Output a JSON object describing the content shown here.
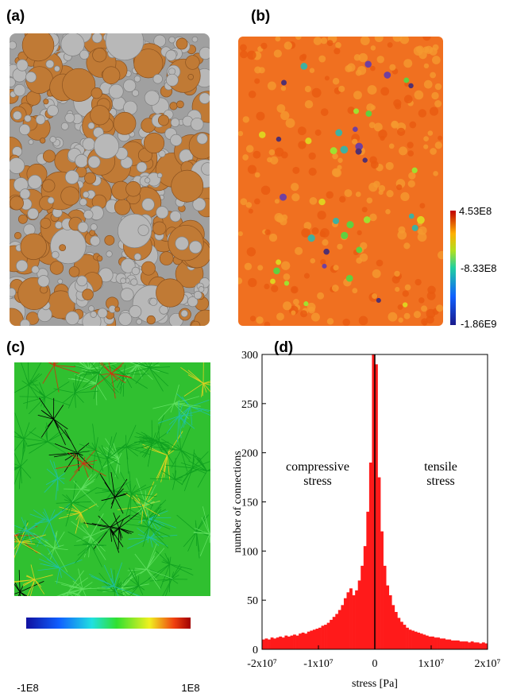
{
  "panel_labels": [
    "(a)",
    "(b)",
    "(c)",
    "(d)"
  ],
  "colorbar_b": {
    "labels": [
      "4.53E8",
      "-8.33E8",
      "-1.86E9"
    ]
  },
  "colorbar_c": {
    "labels": [
      "-1E8",
      "1E8"
    ]
  },
  "chart_data": {
    "type": "histogram",
    "ylabel": "number of connections",
    "xlabel": "stress [Pa]",
    "annotations": [
      {
        "lines": [
          "compressive",
          "stress"
        ]
      },
      {
        "lines": [
          "tensile",
          "stress"
        ]
      }
    ],
    "color": "#ff1a1a",
    "vline": 0,
    "bins": [
      -20000000,
      -19500000,
      -19000000,
      -18500000,
      -18000000,
      -17500000,
      -17000000,
      -16500000,
      -16000000,
      -15500000,
      -15000000,
      -14500000,
      -14000000,
      -13500000,
      -13000000,
      -12500000,
      -12000000,
      -11500000,
      -11000000,
      -10500000,
      -10000000,
      -9500000,
      -9000000,
      -8500000,
      -8000000,
      -7500000,
      -7000000,
      -6500000,
      -6000000,
      -5500000,
      -5000000,
      -4500000,
      -4000000,
      -3500000,
      -3000000,
      -2500000,
      -2000000,
      -1500000,
      -1000000,
      -500000,
      0,
      500000,
      1000000,
      1500000,
      2000000,
      2500000,
      3000000,
      3500000,
      4000000,
      4500000,
      5000000,
      5500000,
      6000000,
      6500000,
      7000000,
      7500000,
      8000000,
      8500000,
      9000000,
      9500000,
      10000000,
      10500000,
      11000000,
      11500000,
      12000000,
      12500000,
      13000000,
      13500000,
      14000000,
      14500000,
      15000000,
      15500000,
      16000000,
      16500000,
      17000000,
      17500000,
      18000000,
      18500000,
      19000000,
      19500000,
      20000000
    ],
    "counts": [
      10,
      11,
      10,
      12,
      11,
      12,
      13,
      12,
      14,
      13,
      14,
      15,
      14,
      16,
      17,
      16,
      18,
      19,
      20,
      21,
      22,
      24,
      25,
      27,
      30,
      33,
      36,
      40,
      45,
      52,
      58,
      62,
      55,
      60,
      70,
      85,
      105,
      140,
      190,
      300,
      290,
      175,
      120,
      85,
      65,
      55,
      45,
      38,
      32,
      28,
      25,
      22,
      20,
      19,
      18,
      17,
      16,
      15,
      14,
      13,
      13,
      12,
      12,
      11,
      11,
      10,
      10,
      9,
      9,
      9,
      8,
      8,
      8,
      7,
      8,
      7,
      7,
      6,
      7,
      6
    ],
    "xlim": [
      -20000000,
      20000000
    ],
    "xticks": [
      {
        "value": -20000000,
        "label": "-2x10⁷"
      },
      {
        "value": -10000000,
        "label": "-1x10⁷"
      },
      {
        "value": 0,
        "label": "0"
      },
      {
        "value": 10000000,
        "label": "1x10⁷"
      },
      {
        "value": 20000000,
        "label": "2x10⁷"
      }
    ],
    "ylim": [
      0,
      300
    ],
    "yticks": [
      0,
      50,
      100,
      150,
      200,
      250,
      300
    ]
  }
}
